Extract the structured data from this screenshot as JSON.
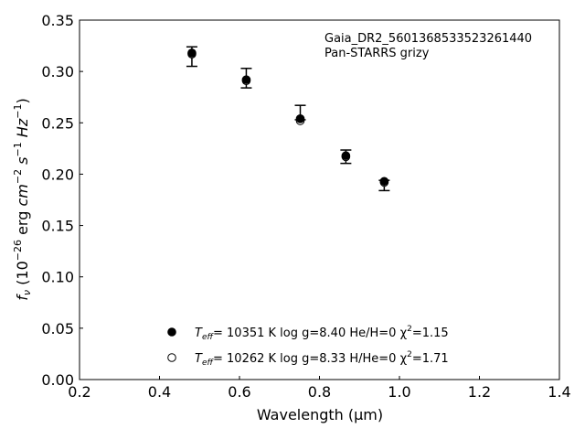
{
  "chart_data": {
    "type": "scatter",
    "xlabel": "Wavelength (μm)",
    "ylabel": "f_ν (10^-26 erg cm^-2 s^-1 Hz^-1)",
    "xlim": [
      0.2,
      1.4
    ],
    "ylim": [
      0.0,
      0.35
    ],
    "xticks": [
      "0.2",
      "0.4",
      "0.6",
      "0.8",
      "1.0",
      "1.2",
      "1.4"
    ],
    "yticks": [
      "0.00",
      "0.05",
      "0.10",
      "0.15",
      "0.20",
      "0.25",
      "0.30",
      "0.35"
    ],
    "grid": false,
    "annotations": [
      "Gaia_DR2_5601368533523261440",
      "Pan-STARRS grizy"
    ],
    "observed": {
      "x": [
        0.481,
        0.617,
        0.752,
        0.866,
        0.962
      ],
      "y": [
        0.3145,
        0.2935,
        0.26,
        0.217,
        0.189
      ],
      "yerr": [
        0.0095,
        0.0095,
        0.007,
        0.0065,
        0.005
      ]
    },
    "series": [
      {
        "name": "T_eff= 10351 K  log g=8.40  He/H=0  χ²=1.15",
        "marker": "filled-circle",
        "x": [
          0.481,
          0.617,
          0.752,
          0.866,
          0.962
        ],
        "y": [
          0.318,
          0.292,
          0.254,
          0.218,
          0.193
        ]
      },
      {
        "name": "T_eff= 10262 K  log g=8.33  H/He=0  χ²=1.71",
        "marker": "open-circle",
        "x": [
          0.481,
          0.617,
          0.752,
          0.866,
          0.962
        ],
        "y": [
          0.317,
          0.291,
          0.252,
          0.217,
          0.192
        ]
      }
    ],
    "legend": {
      "placement": "lower-center",
      "entries": [
        {
          "teff_label": "T",
          "teff_sub": "eff",
          "rest": "= 10351 K  log g=8.40  He/H=0  χ",
          "chi_sup": "2",
          "chi_rest": "=1.15",
          "marker": "filled-circle"
        },
        {
          "teff_label": "T",
          "teff_sub": "eff",
          "rest": "= 10262 K  log g=8.33  H/He=0  χ",
          "chi_sup": "2",
          "chi_rest": "=1.71",
          "marker": "open-circle"
        }
      ]
    },
    "colors": {
      "marker": "#000000",
      "axes": "#000000",
      "background": "#ffffff"
    }
  }
}
